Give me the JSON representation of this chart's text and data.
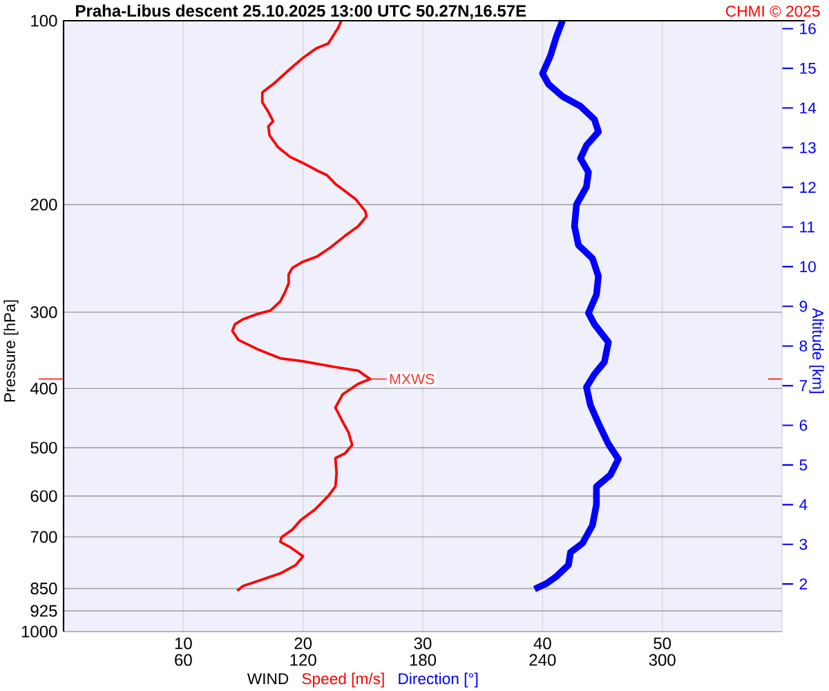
{
  "chart_data": {
    "type": "line",
    "title": "Praha-Libus   descent   25.10.2025 13:00 UTC   50.27N,16.57E",
    "xlabel": "WIND",
    "ylabel": "Pressure [hPa]",
    "y2label": "Altitude [km]",
    "annotations": [
      "CHMI © 2025",
      {
        "text": "MXWS",
        "x": 25.6,
        "y": 386
      }
    ],
    "series": [
      {
        "name": "Speed [m/s]",
        "color": "#ff0000",
        "x": [
          23.2,
          22.9,
          22.1,
          21.1,
          20.0,
          18.9,
          17.5,
          16.6,
          16.6,
          17.1,
          17.5,
          17.1,
          17.2,
          17.9,
          18.9,
          20.0,
          21.2,
          22.0,
          22.7,
          23.5,
          24.4,
          25.2,
          25.3,
          24.6,
          23.5,
          22.3,
          21.2,
          20.0,
          19.1,
          18.8,
          18.8,
          18.5,
          18.1,
          17.3,
          16.2,
          15.0,
          14.3,
          14.1,
          14.6,
          16.2,
          18.1,
          20.0,
          22.7,
          24.6,
          25.6,
          24.6,
          23.3,
          22.7,
          23.3,
          23.8,
          24.1,
          23.5,
          22.7,
          22.8,
          22.7,
          22.1,
          21.0,
          19.8,
          19.1,
          18.2,
          18.1,
          18.9,
          20.0,
          19.4,
          18.1,
          16.2,
          15.0,
          14.5
        ],
        "values": [
          100,
          103,
          109,
          111,
          115,
          120,
          127,
          131,
          136,
          141,
          146,
          149,
          154,
          161,
          167,
          171,
          176,
          179,
          185,
          190,
          196,
          205,
          209,
          217,
          225,
          235,
          243,
          248,
          254,
          260,
          269,
          278,
          288,
          298,
          302,
          308,
          314,
          322,
          333,
          345,
          357,
          361,
          369,
          374,
          386,
          393,
          409,
          430,
          453,
          472,
          495,
          511,
          520,
          551,
          579,
          600,
          631,
          657,
          681,
          701,
          713,
          727,
          753,
          778,
          803,
          827,
          842,
          857
        ]
      },
      {
        "name": "Direction [°]",
        "color": "#0000ff",
        "axis": "x2",
        "x": [
          250,
          247,
          244,
          240,
          243,
          250,
          259,
          266,
          268,
          262,
          259,
          263,
          262,
          257,
          256,
          258,
          265,
          268,
          267,
          263,
          266,
          273,
          271,
          266,
          262,
          264,
          268,
          273,
          278,
          274,
          267,
          267,
          265,
          260,
          254,
          253,
          247,
          242,
          236
        ],
        "values": [
          100,
          106,
          114,
          122,
          127,
          133,
          138,
          145,
          152,
          160,
          168,
          177,
          187,
          200,
          217,
          233,
          245,
          262,
          281,
          301,
          314,
          336,
          362,
          379,
          398,
          426,
          456,
          493,
          522,
          554,
          579,
          620,
          670,
          717,
          742,
          778,
          812,
          834,
          852
        ]
      }
    ],
    "xlim": [
      0,
      60
    ],
    "xticks": [
      10,
      20,
      30,
      40,
      50
    ],
    "x2lim": [
      0,
      360
    ],
    "x2ticks": [
      60,
      120,
      180,
      240,
      300
    ],
    "ylim": [
      1000,
      100
    ],
    "log": "y",
    "yticks": [
      100,
      200,
      300,
      400,
      500,
      600,
      700,
      850,
      925,
      1000
    ],
    "y2lim": [
      0.8,
      16.2
    ],
    "y2ticks": [
      2,
      3,
      4,
      5,
      6,
      7,
      8,
      9,
      10,
      11,
      12,
      13,
      14,
      15,
      16
    ],
    "grid": true
  }
}
